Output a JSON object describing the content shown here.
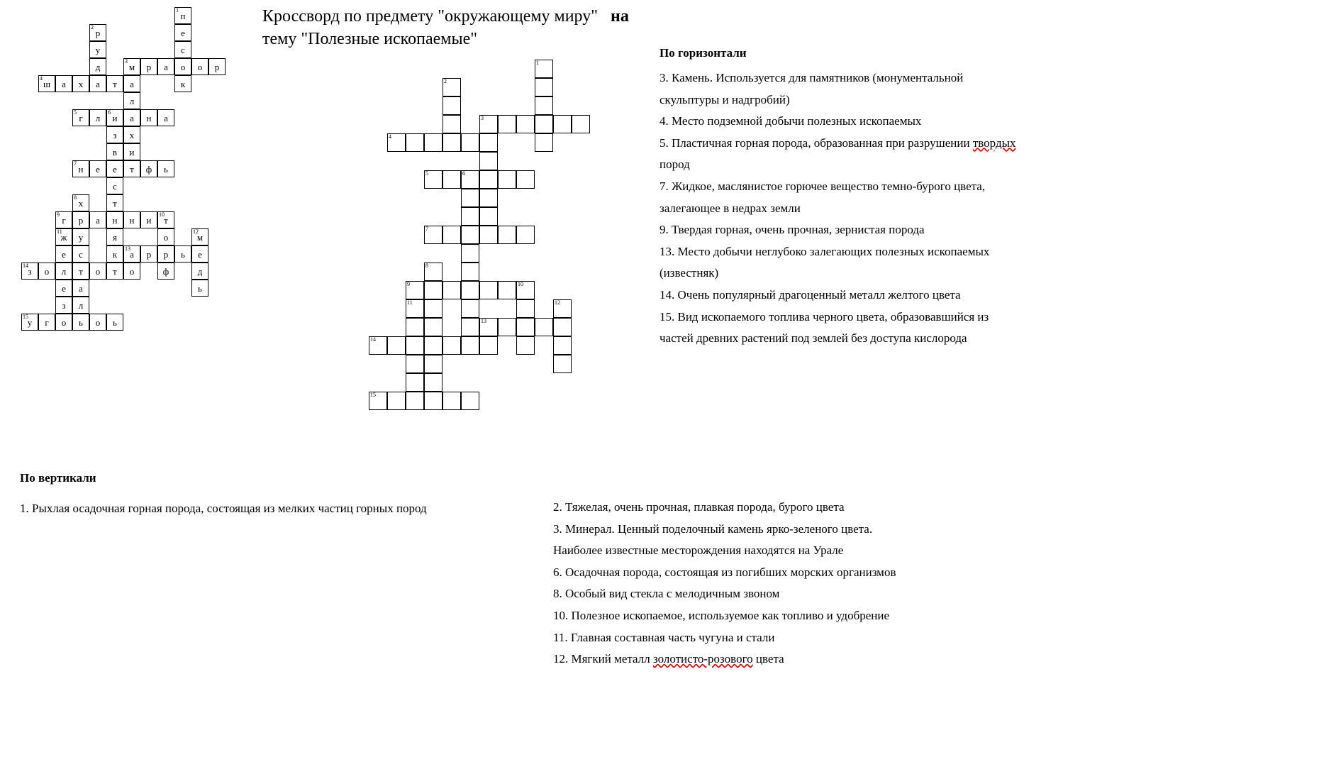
{
  "title_line1": "Кроссворд по предмету \"окружающему миру\"",
  "title_bold": "на",
  "title_line2": "тему \"Полезные ископаемые\"",
  "heading_horizontal": "По горизонтали",
  "heading_vertical": "По вертикали",
  "clues_horizontal": [
    "3. Камень. Используется для памятников (монументальной",
    "скульптуры и надгробий)",
    "4. Место подземной добычи полезных ископаемых",
    "5. Пластичная горная порода, образованная при разрушении ",
    "пород",
    "7. Жидкое, маслянистое горючее вещество темно-бурого цвета,",
    "залегающее в недрах земли",
    "9. Твердая горная, очень прочная, зернистая порода",
    "13. Место добычи неглубоко залегающих полезных ископаемых",
    "(известняк)",
    "14. Очень популярный драгоценный металл желтого цвета",
    "15. Вид ископаемого топлива черного цвета, образовавшийся из",
    "частей древних растений под землей без доступа кислорода"
  ],
  "clues_horizontal_wavy_index": 3,
  "clues_horizontal_wavy_word": "твордых",
  "clues_vertical_left": "1. Рыхлая осадочная горная порода, состоящая из мелких частиц   горных пород",
  "clues_vertical_right": [
    "2. Тяжелая, очень прочная, плавкая порода, бурого цвета",
    "3. Минерал. Ценный поделочный камень ярко-зеленого цвета.",
    "Наиболее известные месторождения находятся на Урале",
    "6. Осадочная порода, состоящая из погибших морских организмов",
    "8. Особый вид стекла с мелодичным звоном",
    "10. Полезное ископаемое, используемое как топливо и удобрение",
    "11. Главная составная часть чугуна и стали",
    "12. Мягкий металл ",
    " цвета"
  ],
  "clues_vertical_wavy_word": "золотисто-розового",
  "grid_left": {
    "cell_size": 24,
    "cells": [
      {
        "r": 0,
        "c": 8,
        "num": "1",
        "letter": "п"
      },
      {
        "r": 1,
        "c": 8,
        "letter": "е"
      },
      {
        "r": 2,
        "c": 8,
        "letter": "с"
      },
      {
        "r": 3,
        "c": 8,
        "letter": "о"
      },
      {
        "r": 4,
        "c": 8,
        "letter": "к"
      },
      {
        "r": 1,
        "c": 3,
        "num": "2",
        "letter": "р"
      },
      {
        "r": 2,
        "c": 3,
        "letter": "у"
      },
      {
        "r": 3,
        "c": 3,
        "letter": "д"
      },
      {
        "r": 4,
        "c": 3,
        "letter": "а"
      },
      {
        "r": 3,
        "c": 5,
        "num": "3",
        "letter": "м"
      },
      {
        "r": 3,
        "c": 6,
        "letter": "р"
      },
      {
        "r": 3,
        "c": 7,
        "letter": "а"
      },
      {
        "r": 3,
        "c": 9,
        "letter": "о"
      },
      {
        "r": 3,
        "c": 10,
        "letter": "р"
      },
      {
        "r": 4,
        "c": 5,
        "letter": "а"
      },
      {
        "r": 5,
        "c": 5,
        "letter": "л"
      },
      {
        "r": 6,
        "c": 5,
        "letter": "а"
      },
      {
        "r": 7,
        "c": 5,
        "letter": "х"
      },
      {
        "r": 8,
        "c": 5,
        "letter": "и"
      },
      {
        "r": 9,
        "c": 5,
        "letter": "т"
      },
      {
        "r": 4,
        "c": 0,
        "num": "4",
        "letter": "ш"
      },
      {
        "r": 4,
        "c": 1,
        "letter": "а"
      },
      {
        "r": 4,
        "c": 2,
        "letter": "х"
      },
      {
        "r": 4,
        "c": 4,
        "letter": "т"
      },
      {
        "r": 6,
        "c": 2,
        "num": "5",
        "letter": "г"
      },
      {
        "r": 6,
        "c": 3,
        "letter": "л"
      },
      {
        "r": 6,
        "c": 4,
        "num": "6",
        "letter": "и"
      },
      {
        "r": 6,
        "c": 6,
        "letter": "н"
      },
      {
        "r": 6,
        "c": 7,
        "letter": "а"
      },
      {
        "r": 7,
        "c": 4,
        "letter": "з"
      },
      {
        "r": 8,
        "c": 4,
        "letter": "в"
      },
      {
        "r": 9,
        "c": 4,
        "letter": "е"
      },
      {
        "r": 10,
        "c": 4,
        "letter": "с"
      },
      {
        "r": 11,
        "c": 4,
        "letter": "т"
      },
      {
        "r": 12,
        "c": 4,
        "letter": "н"
      },
      {
        "r": 13,
        "c": 4,
        "letter": "я"
      },
      {
        "r": 14,
        "c": 4,
        "letter": "к"
      },
      {
        "r": 9,
        "c": 2,
        "num": "7",
        "letter": "н"
      },
      {
        "r": 9,
        "c": 3,
        "letter": "е"
      },
      {
        "r": 9,
        "c": 6,
        "letter": "ф"
      },
      {
        "r": 9,
        "c": 7,
        "letter": "ь"
      },
      {
        "r": 11,
        "c": 2,
        "num": "8",
        "letter": "х"
      },
      {
        "r": 12,
        "c": 2,
        "letter": "р"
      },
      {
        "r": 13,
        "c": 2,
        "letter": "у"
      },
      {
        "r": 14,
        "c": 2,
        "letter": "с"
      },
      {
        "r": 15,
        "c": 2,
        "letter": "т"
      },
      {
        "r": 16,
        "c": 2,
        "letter": "а"
      },
      {
        "r": 17,
        "c": 2,
        "letter": "л"
      },
      {
        "r": 18,
        "c": 2,
        "letter": "ь"
      },
      {
        "r": 12,
        "c": 1,
        "num": "9",
        "letter": "г"
      },
      {
        "r": 12,
        "c": 3,
        "letter": "а"
      },
      {
        "r": 12,
        "c": 5,
        "letter": "н"
      },
      {
        "r": 12,
        "c": 6,
        "letter": "и"
      },
      {
        "r": 12,
        "c": 7,
        "num": "10",
        "letter": "т"
      },
      {
        "r": 13,
        "c": 7,
        "letter": "о"
      },
      {
        "r": 14,
        "c": 7,
        "letter": "р"
      },
      {
        "r": 15,
        "c": 7,
        "letter": "ф"
      },
      {
        "r": 13,
        "c": 1,
        "num": "11",
        "letter": "ж"
      },
      {
        "r": 14,
        "c": 1,
        "letter": "е"
      },
      {
        "r": 15,
        "c": 1,
        "letter": "л"
      },
      {
        "r": 16,
        "c": 1,
        "letter": "е"
      },
      {
        "r": 17,
        "c": 1,
        "letter": "з"
      },
      {
        "r": 18,
        "c": 1,
        "letter": "о"
      },
      {
        "r": 13,
        "c": 9,
        "num": "12",
        "letter": "м"
      },
      {
        "r": 14,
        "c": 9,
        "letter": "е"
      },
      {
        "r": 15,
        "c": 9,
        "letter": "д"
      },
      {
        "r": 16,
        "c": 9,
        "letter": "ь"
      },
      {
        "r": 14,
        "c": 5,
        "num": "13",
        "letter": "а"
      },
      {
        "r": 14,
        "c": 6,
        "letter": "р"
      },
      {
        "r": 14,
        "c": 8,
        "letter": "ь"
      },
      {
        "r": 15,
        "c": -1,
        "num": "14",
        "letter": "з"
      },
      {
        "r": 15,
        "c": 0,
        "letter": "о"
      },
      {
        "r": 15,
        "c": 3,
        "letter": "о"
      },
      {
        "r": 15,
        "c": 4,
        "letter": "т"
      },
      {
        "r": 15,
        "c": 5,
        "letter": "о"
      },
      {
        "r": 18,
        "c": -1,
        "num": "15",
        "letter": "у"
      },
      {
        "r": 18,
        "c": 0,
        "letter": "г"
      },
      {
        "r": 18,
        "c": 3,
        "letter": "о"
      },
      {
        "r": 18,
        "c": 4,
        "letter": "ь"
      }
    ]
  },
  "grid_right": {
    "cell_size": 26,
    "cells": [
      {
        "r": 0,
        "c": 8,
        "num": "1"
      },
      {
        "r": 1,
        "c": 8
      },
      {
        "r": 2,
        "c": 8
      },
      {
        "r": 3,
        "c": 8
      },
      {
        "r": 4,
        "c": 8
      },
      {
        "r": 1,
        "c": 3,
        "num": "2"
      },
      {
        "r": 2,
        "c": 3
      },
      {
        "r": 3,
        "c": 3
      },
      {
        "r": 4,
        "c": 3
      },
      {
        "r": 3,
        "c": 5,
        "num": "3"
      },
      {
        "r": 3,
        "c": 6
      },
      {
        "r": 3,
        "c": 7
      },
      {
        "r": 3,
        "c": 9
      },
      {
        "r": 3,
        "c": 10
      },
      {
        "r": 4,
        "c": 5
      },
      {
        "r": 5,
        "c": 5
      },
      {
        "r": 6,
        "c": 5
      },
      {
        "r": 7,
        "c": 5
      },
      {
        "r": 8,
        "c": 5
      },
      {
        "r": 9,
        "c": 5
      },
      {
        "r": 4,
        "c": 0,
        "num": "4"
      },
      {
        "r": 4,
        "c": 1
      },
      {
        "r": 4,
        "c": 2
      },
      {
        "r": 4,
        "c": 4
      },
      {
        "r": 6,
        "c": 2,
        "num": "5"
      },
      {
        "r": 6,
        "c": 3
      },
      {
        "r": 6,
        "c": 4,
        "num": "6"
      },
      {
        "r": 6,
        "c": 6
      },
      {
        "r": 6,
        "c": 7
      },
      {
        "r": 7,
        "c": 4
      },
      {
        "r": 8,
        "c": 4
      },
      {
        "r": 9,
        "c": 4
      },
      {
        "r": 10,
        "c": 4
      },
      {
        "r": 11,
        "c": 4
      },
      {
        "r": 12,
        "c": 4
      },
      {
        "r": 13,
        "c": 4
      },
      {
        "r": 14,
        "c": 4
      },
      {
        "r": 9,
        "c": 2,
        "num": "7"
      },
      {
        "r": 9,
        "c": 3
      },
      {
        "r": 9,
        "c": 6
      },
      {
        "r": 9,
        "c": 7
      },
      {
        "r": 11,
        "c": 2,
        "num": "8"
      },
      {
        "r": 12,
        "c": 2
      },
      {
        "r": 13,
        "c": 2
      },
      {
        "r": 14,
        "c": 2
      },
      {
        "r": 15,
        "c": 2
      },
      {
        "r": 16,
        "c": 2
      },
      {
        "r": 17,
        "c": 2
      },
      {
        "r": 18,
        "c": 2
      },
      {
        "r": 12,
        "c": 1,
        "num": "9"
      },
      {
        "r": 12,
        "c": 3
      },
      {
        "r": 12,
        "c": 5
      },
      {
        "r": 12,
        "c": 6
      },
      {
        "r": 12,
        "c": 7,
        "num": "10"
      },
      {
        "r": 13,
        "c": 7
      },
      {
        "r": 14,
        "c": 7
      },
      {
        "r": 15,
        "c": 7
      },
      {
        "r": 13,
        "c": 1,
        "num": "11"
      },
      {
        "r": 14,
        "c": 1
      },
      {
        "r": 15,
        "c": 1
      },
      {
        "r": 16,
        "c": 1
      },
      {
        "r": 17,
        "c": 1
      },
      {
        "r": 18,
        "c": 1
      },
      {
        "r": 13,
        "c": 9,
        "num": "12"
      },
      {
        "r": 14,
        "c": 9
      },
      {
        "r": 15,
        "c": 9
      },
      {
        "r": 16,
        "c": 9
      },
      {
        "r": 14,
        "c": 5,
        "num": "13"
      },
      {
        "r": 14,
        "c": 6
      },
      {
        "r": 14,
        "c": 8
      },
      {
        "r": 15,
        "c": -1,
        "num": "14"
      },
      {
        "r": 15,
        "c": 0
      },
      {
        "r": 15,
        "c": 3
      },
      {
        "r": 15,
        "c": 4
      },
      {
        "r": 15,
        "c": 5
      },
      {
        "r": 18,
        "c": -1,
        "num": "15"
      },
      {
        "r": 18,
        "c": 0
      },
      {
        "r": 18,
        "c": 3
      },
      {
        "r": 18,
        "c": 4
      }
    ]
  }
}
